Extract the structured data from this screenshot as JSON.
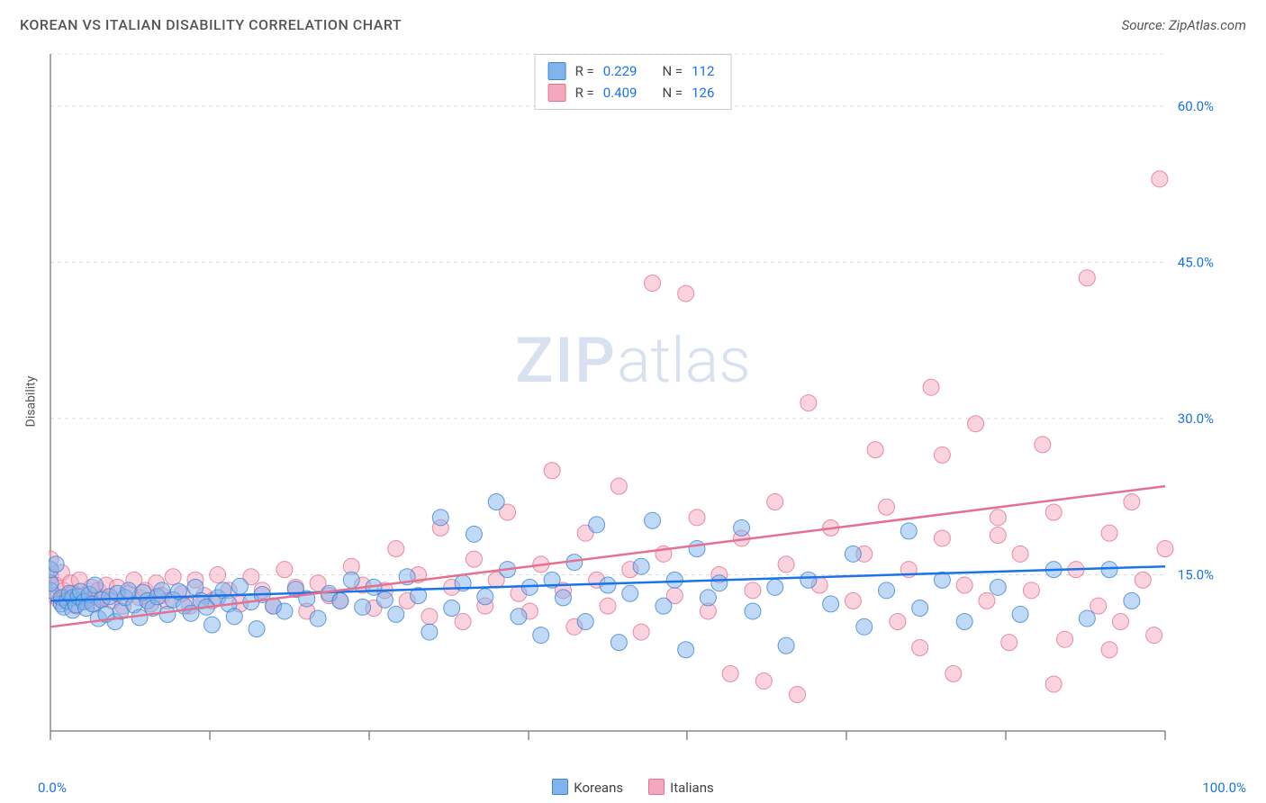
{
  "header": {
    "title": "KOREAN VS ITALIAN DISABILITY CORRELATION CHART",
    "source": "Source: ZipAtlas.com"
  },
  "ylabel": "Disability",
  "watermark": {
    "bold": "ZIP",
    "light": "atlas"
  },
  "chart": {
    "type": "scatter",
    "background_color": "#ffffff",
    "grid_color": "#dddddd",
    "axis_color": "#888888",
    "tick_color": "#888888",
    "label_color": "#1a73e8",
    "xlim": [
      0,
      100
    ],
    "ylim": [
      0,
      65
    ],
    "x_ticks": [
      0,
      14.3,
      28.6,
      42.9,
      57.1,
      71.4,
      85.7,
      100
    ],
    "x_tick_labels_shown": {
      "0": "0.0%",
      "100": "100.0%"
    },
    "y_ticks": [
      15,
      30,
      45,
      60
    ],
    "y_tick_labels": [
      "15.0%",
      "30.0%",
      "45.0%",
      "60.0%"
    ],
    "marker_radius": 9,
    "marker_opacity": 0.5,
    "trend_line_width": 2.5,
    "series": {
      "koreans": {
        "label": "Koreans",
        "fill": "#7fb4ed",
        "stroke": "#3d85d1",
        "trend_color": "#1a73e8",
        "trend": {
          "x1": 0,
          "y1": 12.5,
          "x2": 100,
          "y2": 15.8
        },
        "R": "0.229",
        "N": "112",
        "points": [
          [
            0,
            13.5
          ],
          [
            0,
            14.2
          ],
          [
            0,
            15.5
          ],
          [
            0.5,
            16
          ],
          [
            1,
            12.2
          ],
          [
            1,
            12.8
          ],
          [
            1.2,
            11.9
          ],
          [
            1.5,
            12.5
          ],
          [
            1.7,
            13.2
          ],
          [
            2,
            12.8
          ],
          [
            2,
            11.6
          ],
          [
            2.3,
            12.1
          ],
          [
            2.5,
            12.9
          ],
          [
            2.7,
            13.4
          ],
          [
            3,
            12.4
          ],
          [
            3.2,
            11.8
          ],
          [
            3.5,
            13.1
          ],
          [
            3.8,
            12.2
          ],
          [
            4,
            14
          ],
          [
            4.3,
            10.8
          ],
          [
            4.6,
            12.6
          ],
          [
            5,
            11.2
          ],
          [
            5.3,
            12.9
          ],
          [
            5.8,
            10.5
          ],
          [
            6,
            13.2
          ],
          [
            6.3,
            11.5
          ],
          [
            6.7,
            12.8
          ],
          [
            7,
            13.5
          ],
          [
            7.5,
            12.1
          ],
          [
            8,
            10.9
          ],
          [
            8.3,
            13.3
          ],
          [
            8.7,
            12.5
          ],
          [
            9.2,
            11.8
          ],
          [
            9.6,
            12.9
          ],
          [
            10,
            13.5
          ],
          [
            10.5,
            11.2
          ],
          [
            11,
            12.6
          ],
          [
            11.5,
            13.4
          ],
          [
            12,
            12.0
          ],
          [
            12.6,
            11.3
          ],
          [
            13,
            13.8
          ],
          [
            13.5,
            12.5
          ],
          [
            14,
            11.9
          ],
          [
            14.5,
            10.2
          ],
          [
            15,
            12.8
          ],
          [
            15.5,
            13.5
          ],
          [
            16,
            12.2
          ],
          [
            16.5,
            11.0
          ],
          [
            17,
            13.9
          ],
          [
            18,
            12.4
          ],
          [
            18.5,
            9.8
          ],
          [
            19,
            13.1
          ],
          [
            20,
            12.0
          ],
          [
            21,
            11.5
          ],
          [
            22,
            13.6
          ],
          [
            23,
            12.7
          ],
          [
            24,
            10.8
          ],
          [
            25,
            13.2
          ],
          [
            26,
            12.5
          ],
          [
            27,
            14.5
          ],
          [
            28,
            11.9
          ],
          [
            29,
            13.8
          ],
          [
            30,
            12.6
          ],
          [
            31,
            11.2
          ],
          [
            32,
            14.8
          ],
          [
            33,
            13.0
          ],
          [
            34,
            9.5
          ],
          [
            35,
            20.5
          ],
          [
            36,
            11.8
          ],
          [
            37,
            14.2
          ],
          [
            38,
            18.9
          ],
          [
            39,
            12.9
          ],
          [
            40,
            22.0
          ],
          [
            41,
            15.5
          ],
          [
            42,
            11.0
          ],
          [
            43,
            13.8
          ],
          [
            44,
            9.2
          ],
          [
            45,
            14.5
          ],
          [
            46,
            12.8
          ],
          [
            47,
            16.2
          ],
          [
            48,
            10.5
          ],
          [
            49,
            19.8
          ],
          [
            50,
            14.0
          ],
          [
            51,
            8.5
          ],
          [
            52,
            13.2
          ],
          [
            53,
            15.8
          ],
          [
            54,
            20.2
          ],
          [
            55,
            12.0
          ],
          [
            56,
            14.5
          ],
          [
            57,
            7.8
          ],
          [
            58,
            17.5
          ],
          [
            59,
            12.8
          ],
          [
            60,
            14.2
          ],
          [
            62,
            19.5
          ],
          [
            63,
            11.5
          ],
          [
            65,
            13.8
          ],
          [
            66,
            8.2
          ],
          [
            68,
            14.5
          ],
          [
            70,
            12.2
          ],
          [
            72,
            17.0
          ],
          [
            73,
            10.0
          ],
          [
            75,
            13.5
          ],
          [
            77,
            19.2
          ],
          [
            78,
            11.8
          ],
          [
            80,
            14.5
          ],
          [
            82,
            10.5
          ],
          [
            85,
            13.8
          ],
          [
            87,
            11.2
          ],
          [
            90,
            15.5
          ],
          [
            93,
            10.8
          ],
          [
            95,
            15.5
          ],
          [
            97,
            12.5
          ]
        ]
      },
      "italians": {
        "label": "Italians",
        "fill": "#f5a8bd",
        "stroke": "#e4718f",
        "trend_color": "#e4718f",
        "trend": {
          "x1": 0,
          "y1": 10.0,
          "x2": 100,
          "y2": 23.5
        },
        "R": "0.409",
        "N": "126",
        "points": [
          [
            0,
            14.8
          ],
          [
            0,
            16.5
          ],
          [
            0.3,
            13.0
          ],
          [
            0.5,
            14.0
          ],
          [
            0.8,
            12.5
          ],
          [
            1,
            15.2
          ],
          [
            1.2,
            13.5
          ],
          [
            1.5,
            12.8
          ],
          [
            1.8,
            14.2
          ],
          [
            2,
            13.2
          ],
          [
            2.3,
            12.0
          ],
          [
            2.6,
            14.5
          ],
          [
            3,
            13.0
          ],
          [
            3.3,
            12.5
          ],
          [
            3.7,
            13.8
          ],
          [
            4,
            12.2
          ],
          [
            4.3,
            13.5
          ],
          [
            4.7,
            12.8
          ],
          [
            5,
            14.0
          ],
          [
            5.5,
            12.5
          ],
          [
            6,
            13.8
          ],
          [
            6.5,
            12.0
          ],
          [
            7,
            13.2
          ],
          [
            7.5,
            14.5
          ],
          [
            8,
            12.8
          ],
          [
            8.5,
            13.5
          ],
          [
            9,
            12.2
          ],
          [
            9.5,
            14.2
          ],
          [
            10,
            13.0
          ],
          [
            10.5,
            12.5
          ],
          [
            11,
            14.8
          ],
          [
            11.8,
            13.2
          ],
          [
            12.5,
            12.0
          ],
          [
            13,
            14.5
          ],
          [
            13.8,
            13.0
          ],
          [
            14.5,
            12.5
          ],
          [
            15,
            15.0
          ],
          [
            16,
            13.5
          ],
          [
            17,
            12.2
          ],
          [
            18,
            14.8
          ],
          [
            19,
            13.5
          ],
          [
            20,
            12.0
          ],
          [
            21,
            15.5
          ],
          [
            22,
            13.8
          ],
          [
            23,
            11.5
          ],
          [
            24,
            14.2
          ],
          [
            25,
            13.0
          ],
          [
            26,
            12.5
          ],
          [
            27,
            15.8
          ],
          [
            28,
            14.0
          ],
          [
            29,
            11.8
          ],
          [
            30,
            13.5
          ],
          [
            31,
            17.5
          ],
          [
            32,
            12.5
          ],
          [
            33,
            15.0
          ],
          [
            34,
            11.0
          ],
          [
            35,
            19.5
          ],
          [
            36,
            13.8
          ],
          [
            37,
            10.5
          ],
          [
            38,
            16.5
          ],
          [
            39,
            12.0
          ],
          [
            40,
            14.5
          ],
          [
            41,
            21.0
          ],
          [
            42,
            13.2
          ],
          [
            43,
            11.5
          ],
          [
            44,
            16.0
          ],
          [
            45,
            25.0
          ],
          [
            46,
            13.5
          ],
          [
            47,
            10.0
          ],
          [
            48,
            19.0
          ],
          [
            49,
            14.5
          ],
          [
            50,
            12.0
          ],
          [
            51,
            23.5
          ],
          [
            52,
            15.5
          ],
          [
            53,
            9.5
          ],
          [
            54,
            43.0
          ],
          [
            55,
            17.0
          ],
          [
            56,
            13.0
          ],
          [
            57,
            42.0
          ],
          [
            58,
            20.5
          ],
          [
            59,
            11.5
          ],
          [
            60,
            15.0
          ],
          [
            61,
            5.5
          ],
          [
            62,
            18.5
          ],
          [
            63,
            13.5
          ],
          [
            64,
            4.8
          ],
          [
            65,
            22.0
          ],
          [
            66,
            16.0
          ],
          [
            67,
            3.5
          ],
          [
            68,
            31.5
          ],
          [
            69,
            14.0
          ],
          [
            70,
            19.5
          ],
          [
            72,
            12.5
          ],
          [
            73,
            17.0
          ],
          [
            74,
            27.0
          ],
          [
            75,
            21.5
          ],
          [
            76,
            10.5
          ],
          [
            77,
            15.5
          ],
          [
            78,
            8.0
          ],
          [
            79,
            33.0
          ],
          [
            80,
            18.5
          ],
          [
            81,
            5.5
          ],
          [
            82,
            14.0
          ],
          [
            83,
            29.5
          ],
          [
            84,
            12.5
          ],
          [
            85,
            20.5
          ],
          [
            86,
            8.5
          ],
          [
            87,
            17.0
          ],
          [
            88,
            13.5
          ],
          [
            89,
            27.5
          ],
          [
            90,
            21.0
          ],
          [
            91,
            8.8
          ],
          [
            92,
            15.5
          ],
          [
            93,
            43.5
          ],
          [
            94,
            12.0
          ],
          [
            95,
            19.0
          ],
          [
            96,
            10.5
          ],
          [
            97,
            22.0
          ],
          [
            98,
            14.5
          ],
          [
            99,
            9.2
          ],
          [
            99.5,
            53.0
          ],
          [
            95,
            7.8
          ],
          [
            90,
            4.5
          ],
          [
            85,
            18.8
          ],
          [
            80,
            26.5
          ],
          [
            100,
            17.5
          ]
        ]
      }
    }
  },
  "stats_box": {
    "R_label": "R =",
    "N_label": "N ="
  }
}
